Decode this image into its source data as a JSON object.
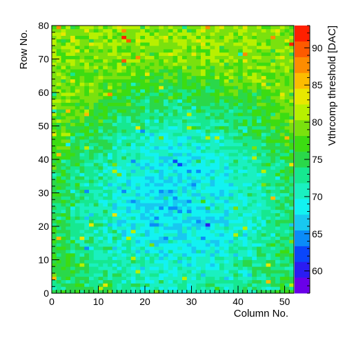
{
  "chart_data": {
    "type": "heatmap",
    "title": "",
    "xlabel": "Column No.",
    "ylabel": "Row No.",
    "zlabel": "Vthrcomp threshold [DAC]",
    "x_range": [
      0,
      52
    ],
    "y_range": [
      0,
      80
    ],
    "z_range": [
      57,
      93
    ],
    "x_ticks": [
      0,
      10,
      20,
      30,
      40,
      50
    ],
    "y_ticks": [
      0,
      10,
      20,
      30,
      40,
      50,
      60,
      70,
      80
    ],
    "z_ticks": [
      60,
      65,
      70,
      75,
      80,
      85,
      90
    ],
    "n_cols": 52,
    "n_rows": 80,
    "description": "Per-pixel Vthrcomp threshold map: values about 79-82 near the outer edges, decreasing to about 64-70 in the central region around column 20-35, row 15-40, with pixel-to-pixel noise of a few DAC.",
    "representative_values": {
      "edges_top": 80,
      "edges_bottom": 75,
      "center": 67,
      "min_observed": 61,
      "max_observed": 91
    },
    "colormap": [
      "#6a00e8",
      "#2a1cf2",
      "#0a46fa",
      "#0a8cf8",
      "#18c8f0",
      "#12f2f2",
      "#1af0c0",
      "#16e890",
      "#2ad84a",
      "#3cdc12",
      "#7ae10e",
      "#b8f000",
      "#e8e800",
      "#fcbc00",
      "#fd8c00",
      "#fe5a00",
      "#fe2000"
    ],
    "grid": false,
    "legend": "colorbar-right"
  }
}
